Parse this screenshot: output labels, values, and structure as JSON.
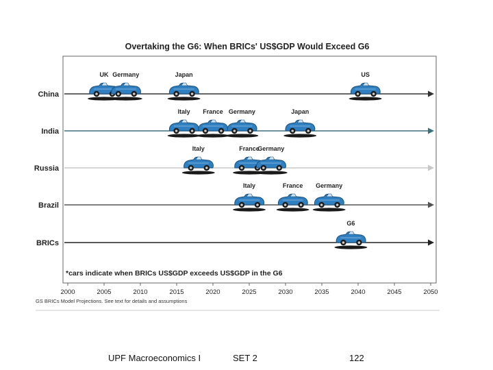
{
  "chart_data": {
    "type": "scatter",
    "title": "Overtaking the G6: When BRICs' US$GDP Would Exceed G6",
    "x_ticks": [
      2000,
      2005,
      2010,
      2015,
      2020,
      2025,
      2030,
      2035,
      2040,
      2045,
      2050
    ],
    "xlim": [
      2000,
      2050
    ],
    "rows": [
      {
        "name": "China",
        "line_color": "#333333",
        "events": [
          {
            "label": "UK",
            "year": 2005
          },
          {
            "label": "Germany",
            "year": 2008
          },
          {
            "label": "Japan",
            "year": 2016
          },
          {
            "label": "US",
            "year": 2041
          }
        ]
      },
      {
        "name": "India",
        "line_color": "#3d6f7d",
        "events": [
          {
            "label": "Italy",
            "year": 2016
          },
          {
            "label": "France",
            "year": 2020
          },
          {
            "label": "Germany",
            "year": 2024
          },
          {
            "label": "Japan",
            "year": 2032
          }
        ]
      },
      {
        "name": "Russia",
        "line_color": "#c8c8c8",
        "events": [
          {
            "label": "Italy",
            "year": 2018
          },
          {
            "label": "France",
            "year": 2025
          },
          {
            "label": "Germany",
            "year": 2028
          }
        ]
      },
      {
        "name": "Brazil",
        "line_color": "#555555",
        "events": [
          {
            "label": "Italy",
            "year": 2025
          },
          {
            "label": "France",
            "year": 2031
          },
          {
            "label": "Germany",
            "year": 2036
          }
        ]
      },
      {
        "name": "BRICs",
        "line_color": "#222222",
        "events": [
          {
            "label": "G6",
            "year": 2039
          }
        ]
      }
    ],
    "note": "*cars indicate when BRICs US$GDP exceeds US$GDP in the G6",
    "source": "GS BRICs Model Projections.  See text for details and assumptions"
  },
  "colors": {
    "car_body": "#2f7fc1",
    "car_dark": "#1b4f7a",
    "shadow": "#1a1a1a",
    "frame": "#666666"
  },
  "icons": {
    "event_marker": "car-icon"
  },
  "footer": {
    "course": "UPF Macroeconomics I",
    "set": "SET 2",
    "page": "122"
  }
}
